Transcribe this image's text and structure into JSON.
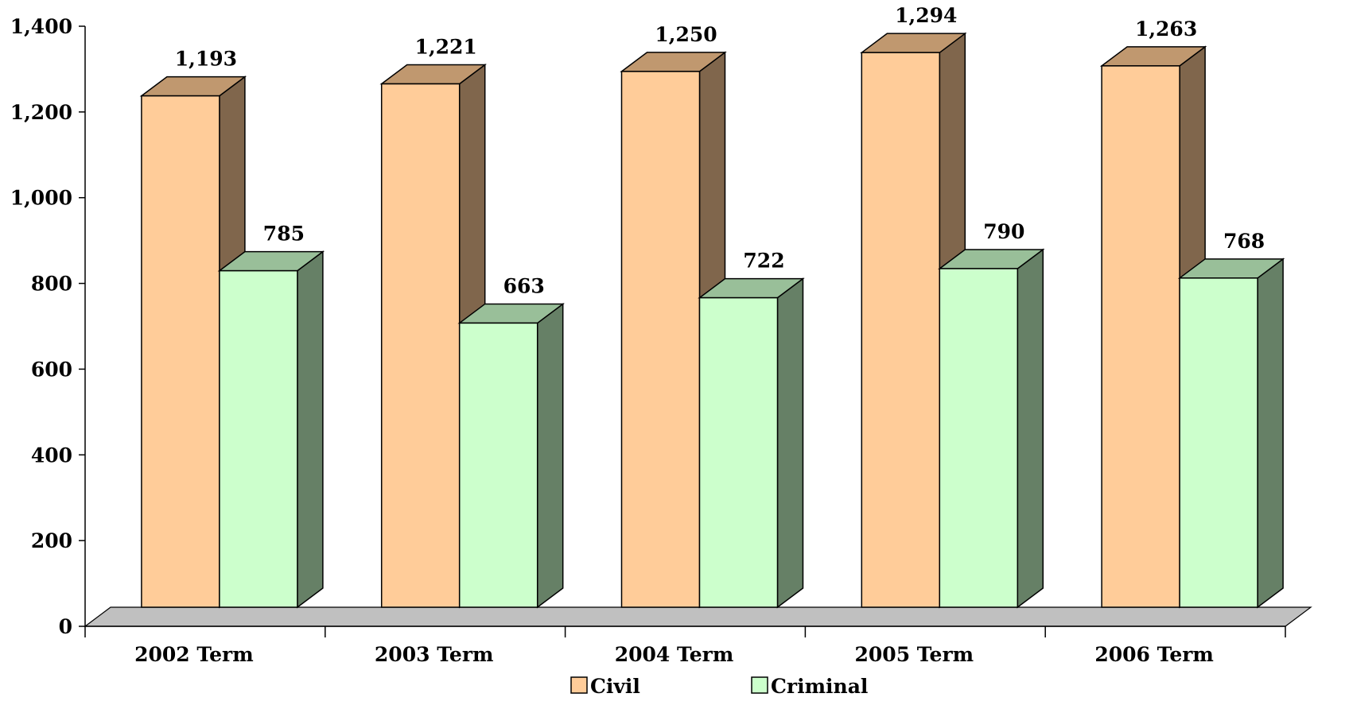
{
  "chart_data": {
    "type": "bar",
    "three_d": true,
    "categories": [
      "2002 Term",
      "2003 Term",
      "2004 Term",
      "2005 Term",
      "2006 Term"
    ],
    "series": [
      {
        "name": "Civil",
        "values": [
          1193,
          1221,
          1250,
          1294,
          1263
        ],
        "labels": [
          "1,193",
          "1,221",
          "1,250",
          "1,294",
          "1,263"
        ],
        "colors": {
          "front": "#FFCC99",
          "top": "#C0986F",
          "side": "#80664C"
        }
      },
      {
        "name": "Criminal",
        "values": [
          785,
          663,
          722,
          790,
          768
        ],
        "labels": [
          "785",
          "663",
          "722",
          "790",
          "768"
        ],
        "colors": {
          "front": "#CCFFCC",
          "top": "#99BF99",
          "side": "#668066"
        }
      }
    ],
    "yticks": [
      0,
      200,
      400,
      600,
      800,
      1000,
      1200,
      1400
    ],
    "ytick_labels": [
      "0",
      "200",
      "400",
      "600",
      "800",
      "1,000",
      "1,200",
      "1,400"
    ],
    "ylim": [
      0,
      1400
    ],
    "floor_color": "#C0C0C0",
    "grid": false,
    "legend_position": "bottom"
  }
}
